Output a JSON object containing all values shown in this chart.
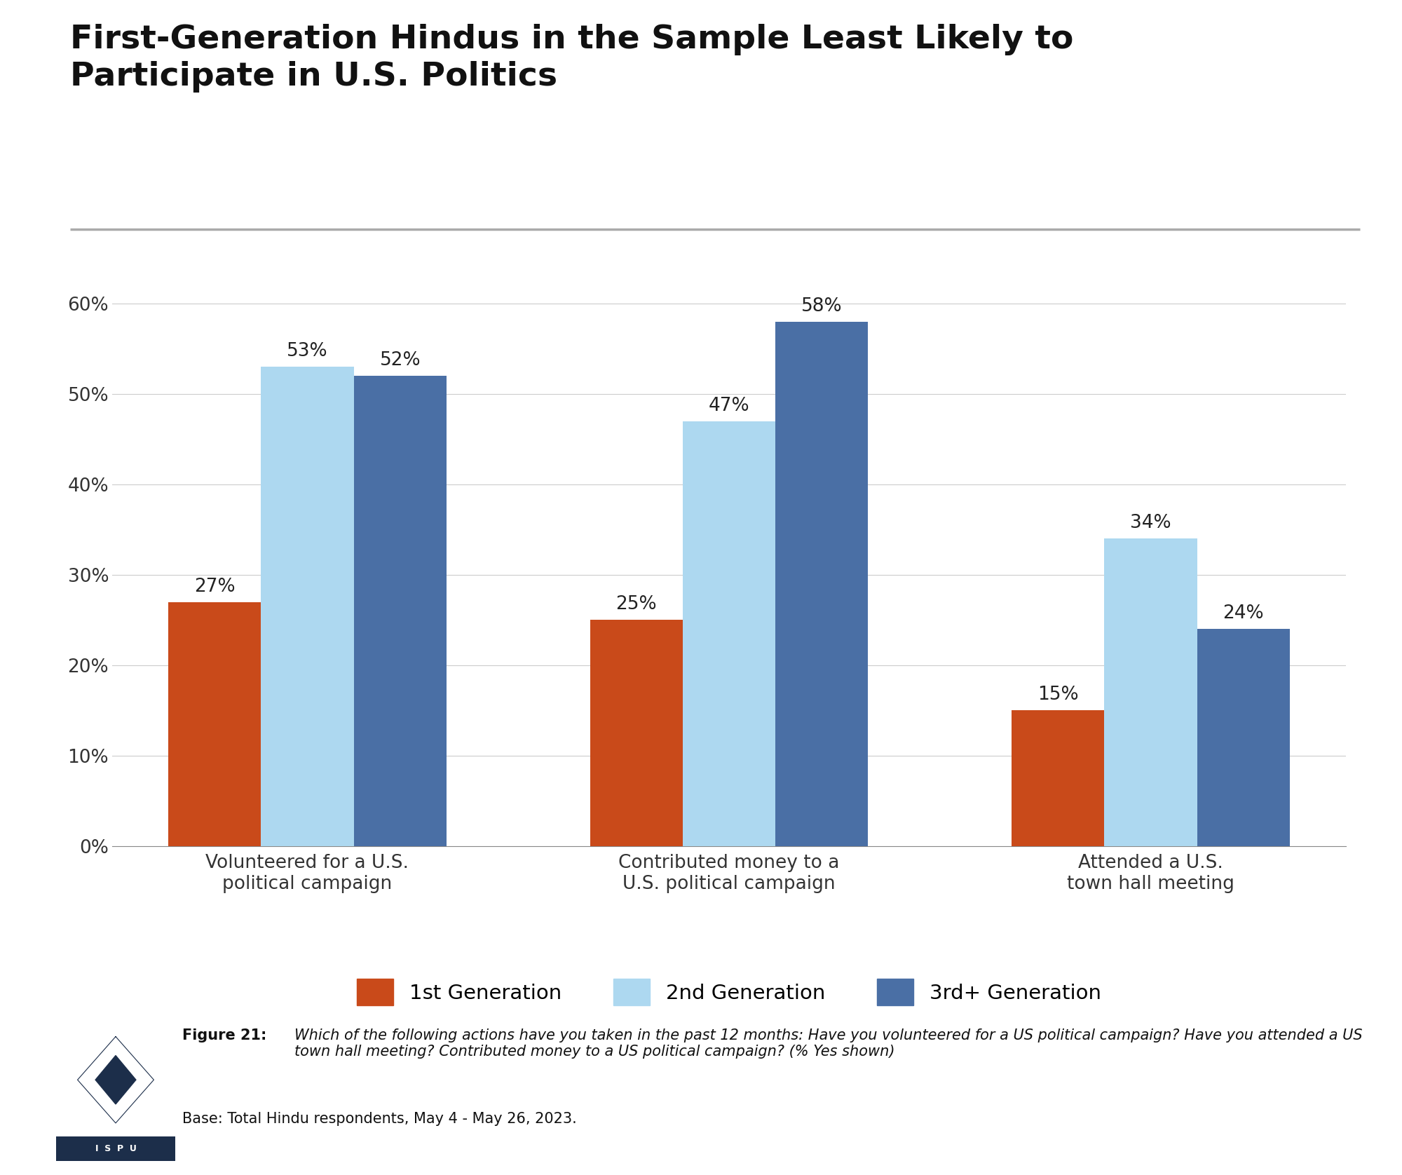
{
  "title_line1": "First-Generation Hindus in the Sample Least Likely to",
  "title_line2": "Participate in U.S. Politics",
  "categories": [
    "Volunteered for a U.S.\npolitical campaign",
    "Contributed money to a\nU.S. political campaign",
    "Attended a U.S.\ntown hall meeting"
  ],
  "series": {
    "1st Generation": [
      27,
      25,
      15
    ],
    "2nd Generation": [
      53,
      47,
      34
    ],
    "3rd+ Generation": [
      52,
      58,
      24
    ]
  },
  "colors": {
    "1st Generation": "#C94A1A",
    "2nd Generation": "#ADD8F0",
    "3rd+ Generation": "#4A6FA5"
  },
  "legend_labels": [
    "1st Generation",
    "2nd Generation",
    "3rd+ Generation"
  ],
  "ylim": [
    0,
    65
  ],
  "yticks": [
    0,
    10,
    20,
    30,
    40,
    50,
    60
  ],
  "ytick_labels": [
    "0%",
    "10%",
    "20%",
    "30%",
    "40%",
    "50%",
    "60%"
  ],
  "bar_width": 0.22,
  "background_color": "#FFFFFF",
  "grid_color": "#CCCCCC",
  "title_fontsize": 34,
  "tick_fontsize": 19,
  "label_fontsize": 19,
  "annotation_fontsize": 19,
  "legend_fontsize": 21,
  "caption_fontsize": 15,
  "separator_color": "#AAAAAA",
  "caption_bold": "Figure 21: ",
  "caption_italic": "Which of the following actions have you taken in the past 12 months: Have you volunteered for a US political campaign? Have you attended a US town hall meeting? Contributed money to a US political campaign? (% Yes shown) ",
  "caption_normal": "Base: Total Hindu respondents, May 4 - May 26, 2023."
}
